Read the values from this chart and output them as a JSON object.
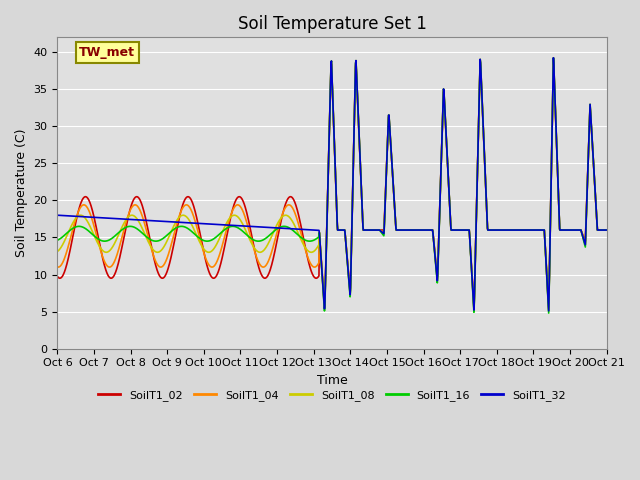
{
  "title": "Soil Temperature Set 1",
  "xlabel": "Time",
  "ylabel": "Soil Temperature (C)",
  "ylim": [
    0,
    42
  ],
  "xlim": [
    0,
    15
  ],
  "background_color": "#e0e0e0",
  "fig_background": "#d8d8d8",
  "legend_labels": [
    "SoilT1_02",
    "SoilT1_04",
    "SoilT1_08",
    "SoilT1_16",
    "SoilT1_32"
  ],
  "colors": [
    "#cc0000",
    "#ff8800",
    "#cccc00",
    "#00cc00",
    "#0000cc"
  ],
  "annotation_text": "TW_met",
  "annotation_box_facecolor": "#ffff99",
  "annotation_box_edgecolor": "#888800",
  "annotation_text_color": "#880000",
  "xtick_labels": [
    "Oct 6",
    "Oct 7",
    "Oct 8",
    "Oct 9",
    "Oct 10",
    "Oct 11",
    "Oct 12",
    "Oct 13",
    "Oct 14",
    "Oct 15",
    "Oct 16",
    "Oct 17",
    "Oct 18",
    "Oct 19",
    "Oct 20",
    "Oct 21"
  ],
  "ytick_values": [
    0,
    5,
    10,
    15,
    20,
    25,
    30,
    35,
    40
  ],
  "grid_color": "#ffffff",
  "title_fontsize": 12,
  "tick_fontsize": 8,
  "label_fontsize": 9,
  "legend_fontsize": 8
}
